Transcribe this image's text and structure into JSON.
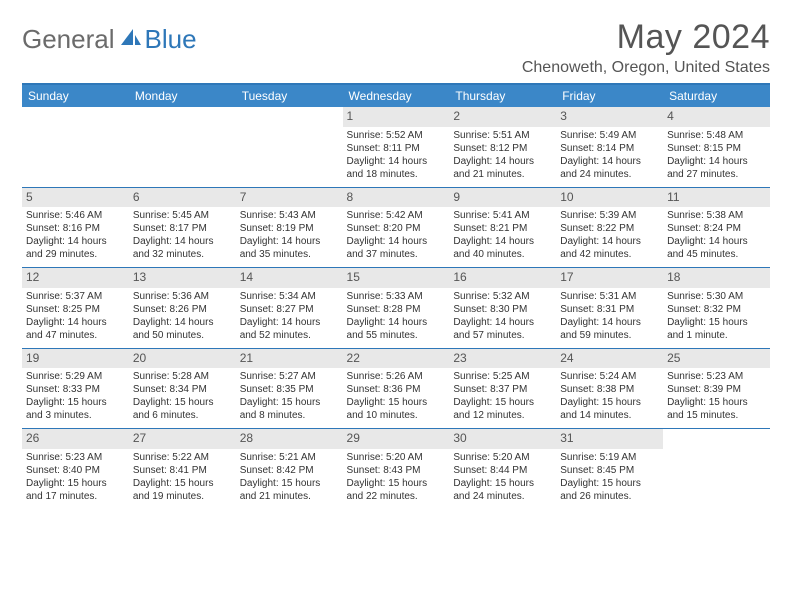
{
  "logo": {
    "part1": "General",
    "part2": "Blue"
  },
  "title": "May 2024",
  "location": "Chenoweth, Oregon, United States",
  "colors": {
    "accent": "#2e77b8",
    "header_bg": "#3b87c8",
    "daynum_bg": "#e8e8e8",
    "text": "#333333",
    "logo_gray": "#6b6b6b"
  },
  "day_headers": [
    "Sunday",
    "Monday",
    "Tuesday",
    "Wednesday",
    "Thursday",
    "Friday",
    "Saturday"
  ],
  "weeks": [
    [
      {
        "n": "",
        "sunrise": "",
        "sunset": "",
        "daylight": ""
      },
      {
        "n": "",
        "sunrise": "",
        "sunset": "",
        "daylight": ""
      },
      {
        "n": "",
        "sunrise": "",
        "sunset": "",
        "daylight": ""
      },
      {
        "n": "1",
        "sunrise": "Sunrise: 5:52 AM",
        "sunset": "Sunset: 8:11 PM",
        "daylight": "Daylight: 14 hours and 18 minutes."
      },
      {
        "n": "2",
        "sunrise": "Sunrise: 5:51 AM",
        "sunset": "Sunset: 8:12 PM",
        "daylight": "Daylight: 14 hours and 21 minutes."
      },
      {
        "n": "3",
        "sunrise": "Sunrise: 5:49 AM",
        "sunset": "Sunset: 8:14 PM",
        "daylight": "Daylight: 14 hours and 24 minutes."
      },
      {
        "n": "4",
        "sunrise": "Sunrise: 5:48 AM",
        "sunset": "Sunset: 8:15 PM",
        "daylight": "Daylight: 14 hours and 27 minutes."
      }
    ],
    [
      {
        "n": "5",
        "sunrise": "Sunrise: 5:46 AM",
        "sunset": "Sunset: 8:16 PM",
        "daylight": "Daylight: 14 hours and 29 minutes."
      },
      {
        "n": "6",
        "sunrise": "Sunrise: 5:45 AM",
        "sunset": "Sunset: 8:17 PM",
        "daylight": "Daylight: 14 hours and 32 minutes."
      },
      {
        "n": "7",
        "sunrise": "Sunrise: 5:43 AM",
        "sunset": "Sunset: 8:19 PM",
        "daylight": "Daylight: 14 hours and 35 minutes."
      },
      {
        "n": "8",
        "sunrise": "Sunrise: 5:42 AM",
        "sunset": "Sunset: 8:20 PM",
        "daylight": "Daylight: 14 hours and 37 minutes."
      },
      {
        "n": "9",
        "sunrise": "Sunrise: 5:41 AM",
        "sunset": "Sunset: 8:21 PM",
        "daylight": "Daylight: 14 hours and 40 minutes."
      },
      {
        "n": "10",
        "sunrise": "Sunrise: 5:39 AM",
        "sunset": "Sunset: 8:22 PM",
        "daylight": "Daylight: 14 hours and 42 minutes."
      },
      {
        "n": "11",
        "sunrise": "Sunrise: 5:38 AM",
        "sunset": "Sunset: 8:24 PM",
        "daylight": "Daylight: 14 hours and 45 minutes."
      }
    ],
    [
      {
        "n": "12",
        "sunrise": "Sunrise: 5:37 AM",
        "sunset": "Sunset: 8:25 PM",
        "daylight": "Daylight: 14 hours and 47 minutes."
      },
      {
        "n": "13",
        "sunrise": "Sunrise: 5:36 AM",
        "sunset": "Sunset: 8:26 PM",
        "daylight": "Daylight: 14 hours and 50 minutes."
      },
      {
        "n": "14",
        "sunrise": "Sunrise: 5:34 AM",
        "sunset": "Sunset: 8:27 PM",
        "daylight": "Daylight: 14 hours and 52 minutes."
      },
      {
        "n": "15",
        "sunrise": "Sunrise: 5:33 AM",
        "sunset": "Sunset: 8:28 PM",
        "daylight": "Daylight: 14 hours and 55 minutes."
      },
      {
        "n": "16",
        "sunrise": "Sunrise: 5:32 AM",
        "sunset": "Sunset: 8:30 PM",
        "daylight": "Daylight: 14 hours and 57 minutes."
      },
      {
        "n": "17",
        "sunrise": "Sunrise: 5:31 AM",
        "sunset": "Sunset: 8:31 PM",
        "daylight": "Daylight: 14 hours and 59 minutes."
      },
      {
        "n": "18",
        "sunrise": "Sunrise: 5:30 AM",
        "sunset": "Sunset: 8:32 PM",
        "daylight": "Daylight: 15 hours and 1 minute."
      }
    ],
    [
      {
        "n": "19",
        "sunrise": "Sunrise: 5:29 AM",
        "sunset": "Sunset: 8:33 PM",
        "daylight": "Daylight: 15 hours and 3 minutes."
      },
      {
        "n": "20",
        "sunrise": "Sunrise: 5:28 AM",
        "sunset": "Sunset: 8:34 PM",
        "daylight": "Daylight: 15 hours and 6 minutes."
      },
      {
        "n": "21",
        "sunrise": "Sunrise: 5:27 AM",
        "sunset": "Sunset: 8:35 PM",
        "daylight": "Daylight: 15 hours and 8 minutes."
      },
      {
        "n": "22",
        "sunrise": "Sunrise: 5:26 AM",
        "sunset": "Sunset: 8:36 PM",
        "daylight": "Daylight: 15 hours and 10 minutes."
      },
      {
        "n": "23",
        "sunrise": "Sunrise: 5:25 AM",
        "sunset": "Sunset: 8:37 PM",
        "daylight": "Daylight: 15 hours and 12 minutes."
      },
      {
        "n": "24",
        "sunrise": "Sunrise: 5:24 AM",
        "sunset": "Sunset: 8:38 PM",
        "daylight": "Daylight: 15 hours and 14 minutes."
      },
      {
        "n": "25",
        "sunrise": "Sunrise: 5:23 AM",
        "sunset": "Sunset: 8:39 PM",
        "daylight": "Daylight: 15 hours and 15 minutes."
      }
    ],
    [
      {
        "n": "26",
        "sunrise": "Sunrise: 5:23 AM",
        "sunset": "Sunset: 8:40 PM",
        "daylight": "Daylight: 15 hours and 17 minutes."
      },
      {
        "n": "27",
        "sunrise": "Sunrise: 5:22 AM",
        "sunset": "Sunset: 8:41 PM",
        "daylight": "Daylight: 15 hours and 19 minutes."
      },
      {
        "n": "28",
        "sunrise": "Sunrise: 5:21 AM",
        "sunset": "Sunset: 8:42 PM",
        "daylight": "Daylight: 15 hours and 21 minutes."
      },
      {
        "n": "29",
        "sunrise": "Sunrise: 5:20 AM",
        "sunset": "Sunset: 8:43 PM",
        "daylight": "Daylight: 15 hours and 22 minutes."
      },
      {
        "n": "30",
        "sunrise": "Sunrise: 5:20 AM",
        "sunset": "Sunset: 8:44 PM",
        "daylight": "Daylight: 15 hours and 24 minutes."
      },
      {
        "n": "31",
        "sunrise": "Sunrise: 5:19 AM",
        "sunset": "Sunset: 8:45 PM",
        "daylight": "Daylight: 15 hours and 26 minutes."
      },
      {
        "n": "",
        "sunrise": "",
        "sunset": "",
        "daylight": ""
      }
    ]
  ]
}
